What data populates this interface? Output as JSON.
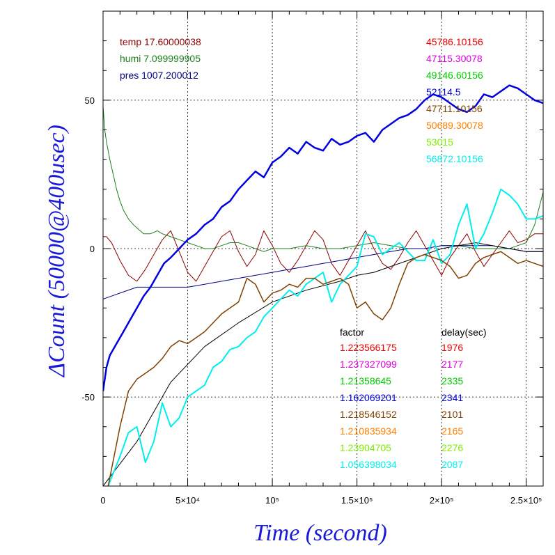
{
  "chart_data": {
    "type": "line",
    "xlabel": "Time (second)",
    "ylabel": "ΔCount (50000@400usec)",
    "xlim": [
      0,
      260000
    ],
    "ylim": [
      -80,
      80
    ],
    "xticks": [
      {
        "value": 0,
        "label": "0"
      },
      {
        "value": 50000,
        "label": "5×10⁴"
      },
      {
        "value": 100000,
        "label": "10⁵"
      },
      {
        "value": 150000,
        "label": "1.5×10⁵"
      },
      {
        "value": 200000,
        "label": "2×10⁵"
      },
      {
        "value": 250000,
        "label": "2.5×10⁵"
      }
    ],
    "yticks": [
      {
        "value": -50,
        "label": "-50"
      },
      {
        "value": 0,
        "label": "0"
      },
      {
        "value": 50,
        "label": "50"
      }
    ],
    "grid": true,
    "env_legend": [
      {
        "label": "temp 17.60000038",
        "color": "#8b0000"
      },
      {
        "label": "humi 7.099999905",
        "color": "#1e7d1e"
      },
      {
        "label": "pres 1007.200012",
        "color": "#00007f"
      }
    ],
    "series_legend": [
      {
        "label": "45786.10156",
        "color": "#ee0000"
      },
      {
        "label": "47115.30078",
        "color": "#e000e0"
      },
      {
        "label": "49146.60156",
        "color": "#00cc00"
      },
      {
        "label": "52114.5",
        "color": "#0000e0"
      },
      {
        "label": "47711.10156",
        "color": "#7f4000"
      },
      {
        "label": "50689.30078",
        "color": "#ff7f00"
      },
      {
        "label": "53015",
        "color": "#7fee00"
      },
      {
        "label": "56872.10156",
        "color": "#00eeee"
      }
    ],
    "table_header": {
      "factor": "factor",
      "delay": "delay(sec)"
    },
    "table_rows": [
      {
        "factor": "1.223566175",
        "delay": "1976",
        "color": "#ee0000"
      },
      {
        "factor": "1.237327099",
        "delay": "2177",
        "color": "#e000e0"
      },
      {
        "factor": "1.21358645",
        "delay": "2335",
        "color": "#00cc00"
      },
      {
        "factor": "1.162069201",
        "delay": "2341",
        "color": "#0000e0"
      },
      {
        "factor": "1.218546152",
        "delay": "2101",
        "color": "#7f4000"
      },
      {
        "factor": "1.210835934",
        "delay": "2165",
        "color": "#ff7f00"
      },
      {
        "factor": "1.23904705",
        "delay": "2276",
        "color": "#7fee00"
      },
      {
        "factor": "1.056398034",
        "delay": "2087",
        "color": "#00eeee"
      }
    ],
    "series": [
      {
        "color": "#8b0000",
        "width": 1,
        "x": [
          0,
          2000,
          5000,
          10000,
          15000,
          20000,
          25000,
          30000,
          35000,
          40000,
          45000,
          50000,
          55000,
          60000,
          65000,
          70000,
          75000,
          80000,
          85000,
          90000,
          95000,
          100000,
          105000,
          110000,
          115000,
          120000,
          125000,
          130000,
          135000,
          140000,
          145000,
          150000,
          155000,
          160000,
          165000,
          170000,
          175000,
          180000,
          185000,
          190000,
          195000,
          200000,
          205000,
          210000,
          215000,
          220000,
          225000,
          230000,
          235000,
          240000,
          245000,
          250000,
          255000,
          260000
        ],
        "y": [
          4,
          4,
          2,
          -4,
          -9,
          -11,
          -7,
          -2,
          3,
          6,
          -1,
          -8,
          -11,
          -6,
          -1,
          4,
          6,
          -1,
          -6,
          -2,
          6,
          1,
          -5,
          -8,
          -4,
          1,
          6,
          3,
          -5,
          -9,
          -4,
          1,
          6,
          0,
          -5,
          -7,
          -3,
          2,
          6,
          1,
          -4,
          -9,
          -3,
          1,
          5,
          -1,
          -6,
          -2,
          2,
          6,
          2,
          3,
          5,
          5
        ]
      },
      {
        "color": "#1e7d1e",
        "width": 1,
        "x": [
          0,
          1000,
          2000,
          4000,
          6000,
          8000,
          10000,
          12000,
          15000,
          18000,
          20000,
          24000,
          28000,
          32000,
          35000,
          40000,
          45000,
          50000,
          55000,
          60000,
          65000,
          70000,
          75000,
          80000,
          85000,
          90000,
          95000,
          100000,
          110000,
          120000,
          130000,
          140000,
          150000,
          160000,
          170000,
          180000,
          190000,
          200000,
          210000,
          220000,
          230000,
          240000,
          245000,
          250000,
          255000,
          260000
        ],
        "y": [
          48,
          40,
          36,
          30,
          25,
          20,
          16,
          13,
          10,
          8,
          7,
          5,
          5,
          6,
          5,
          4,
          3,
          2,
          1,
          0,
          0,
          1,
          2,
          2,
          1,
          0,
          -1,
          0,
          0,
          1,
          0,
          0,
          1,
          2,
          1,
          0,
          0,
          1,
          1,
          0,
          0,
          0,
          1,
          2,
          8,
          19
        ]
      },
      {
        "color": "#00007f",
        "width": 1,
        "x": [
          0,
          5000,
          10000,
          20000,
          30000,
          40000,
          50000,
          60000,
          70000,
          80000,
          90000,
          100000,
          110000,
          120000,
          130000,
          140000,
          150000,
          160000,
          170000,
          180000,
          190000,
          200000,
          210000,
          220000,
          230000,
          240000,
          250000,
          260000
        ],
        "y": [
          -17,
          -16,
          -15,
          -13,
          -13,
          -13,
          -13,
          -12,
          -11,
          -10,
          -9,
          -8,
          -7,
          -6,
          -5,
          -4,
          -3,
          -2,
          -1,
          0,
          0,
          1,
          1,
          1,
          1,
          0,
          -1,
          -1
        ]
      },
      {
        "color": "#000000",
        "width": 1,
        "x": [
          0,
          20000,
          40000,
          60000,
          80000,
          100000,
          120000,
          140000,
          150000,
          160000,
          170000,
          180000,
          190000,
          200000,
          210000,
          220000,
          230000,
          240000,
          250000,
          260000
        ],
        "y": [
          -80,
          -65,
          -45,
          -33,
          -25,
          -18,
          -14,
          -11,
          -9,
          -8,
          -6,
          -4,
          -2,
          0,
          1,
          2,
          1,
          0,
          -1,
          -1
        ]
      },
      {
        "color": "#00eeee",
        "width": 2,
        "x": [
          3000,
          10000,
          15000,
          20000,
          25000,
          30000,
          35000,
          40000,
          45000,
          50000,
          55000,
          60000,
          65000,
          70000,
          75000,
          80000,
          85000,
          90000,
          95000,
          100000,
          105000,
          110000,
          115000,
          120000,
          125000,
          130000,
          135000,
          140000,
          145000,
          150000,
          155000,
          160000,
          165000,
          170000,
          175000,
          180000,
          185000,
          190000,
          195000,
          200000,
          205000,
          210000,
          215000,
          220000,
          225000,
          230000,
          235000,
          240000,
          245000,
          250000,
          255000,
          260000
        ],
        "y": [
          -80,
          -70,
          -62,
          -60,
          -72,
          -65,
          -52,
          -60,
          -57,
          -50,
          -48,
          -46,
          -40,
          -38,
          -34,
          -33,
          -30,
          -28,
          -23,
          -20,
          -17,
          -14,
          -16,
          -12,
          -10,
          -8,
          -18,
          -12,
          -9,
          -6,
          5,
          4,
          -2,
          0,
          2,
          -1,
          -4,
          -4,
          3,
          -5,
          -2,
          8,
          15,
          0,
          5,
          12,
          20,
          18,
          15,
          10,
          10,
          11
        ]
      },
      {
        "color": "#7f4000",
        "width": 1.5,
        "x": [
          3000,
          10000,
          15000,
          20000,
          25000,
          30000,
          35000,
          40000,
          45000,
          50000,
          55000,
          60000,
          65000,
          70000,
          75000,
          80000,
          85000,
          90000,
          95000,
          100000,
          105000,
          110000,
          115000,
          120000,
          125000,
          130000,
          135000,
          140000,
          145000,
          150000,
          155000,
          160000,
          165000,
          170000,
          175000,
          180000,
          185000,
          190000,
          195000,
          200000,
          205000,
          210000,
          215000,
          220000,
          225000,
          230000,
          235000,
          240000,
          245000,
          250000,
          255000,
          260000
        ],
        "y": [
          -80,
          -60,
          -48,
          -44,
          -42,
          -40,
          -37,
          -33,
          -31,
          -32,
          -30,
          -28,
          -25,
          -22,
          -20,
          -18,
          -10,
          -12,
          -18,
          -15,
          -14,
          -12,
          -13,
          -10,
          -10,
          -12,
          -11,
          -10,
          -12,
          -20,
          -18,
          -22,
          -24,
          -20,
          -12,
          -5,
          -3,
          -2,
          -3,
          -4,
          -6,
          -10,
          -9,
          -5,
          -3,
          -2,
          -1,
          -3,
          -5,
          -4,
          -5,
          -6
        ]
      },
      {
        "color": "#0000e0",
        "width": 2.5,
        "x": [
          0,
          2000,
          4000,
          8000,
          12000,
          16000,
          20000,
          24000,
          28000,
          32000,
          36000,
          40000,
          45000,
          50000,
          55000,
          60000,
          65000,
          70000,
          75000,
          80000,
          85000,
          90000,
          95000,
          100000,
          105000,
          110000,
          115000,
          120000,
          125000,
          130000,
          135000,
          140000,
          145000,
          150000,
          155000,
          160000,
          165000,
          170000,
          175000,
          180000,
          185000,
          190000,
          195000,
          200000,
          205000,
          210000,
          215000,
          220000,
          225000,
          230000,
          235000,
          240000,
          245000,
          250000,
          255000,
          260000
        ],
        "y": [
          -48,
          -40,
          -36,
          -32,
          -28,
          -24,
          -20,
          -16,
          -13,
          -9,
          -5,
          -3,
          0,
          3,
          5,
          8,
          10,
          14,
          16,
          20,
          23,
          26,
          24,
          29,
          31,
          34,
          32,
          36,
          34,
          33,
          37,
          35,
          36,
          38,
          39,
          36,
          40,
          42,
          44,
          45,
          47,
          50,
          52,
          51,
          49,
          47,
          46,
          48,
          52,
          51,
          53,
          55,
          54,
          52,
          50,
          49
        ]
      }
    ]
  }
}
